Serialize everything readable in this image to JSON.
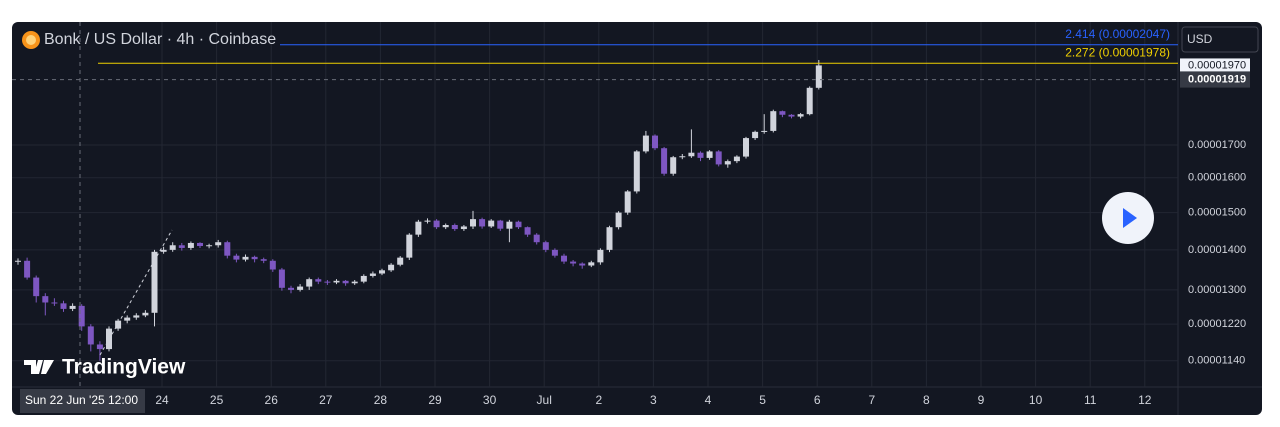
{
  "chart_data": {
    "type": "candlestick",
    "title": "Bonk / US Dollar · 4h · Coinbase",
    "currency": "USD",
    "logo": "TradingView",
    "log_scale": true,
    "grid": true,
    "up_color": "#d1d4dc",
    "down_color": "#7e57c2",
    "ylim": [
      1.086e-05,
      2.135e-05
    ],
    "yticks": [
      {
        "value": 1.7e-05,
        "label": "0.00001700"
      },
      {
        "value": 1.6e-05,
        "label": "0.00001600"
      },
      {
        "value": 1.5e-05,
        "label": "0.00001500"
      },
      {
        "value": 1.4e-05,
        "label": "0.00001400"
      },
      {
        "value": 1.3e-05,
        "label": "0.00001300"
      },
      {
        "value": 1.22e-05,
        "label": "0.00001220"
      },
      {
        "value": 1.14e-05,
        "label": "0.00001140"
      }
    ],
    "xticks": [
      "24",
      "25",
      "26",
      "27",
      "28",
      "29",
      "30",
      "Jul",
      "2",
      "3",
      "4",
      "5",
      "6",
      "7",
      "8",
      "9",
      "10",
      "11",
      "12"
    ],
    "crosshair": {
      "date": "Sun 22 Jun '25",
      "time": "12:00",
      "price": {
        "value": 1.919e-05,
        "label": "0.00001919"
      }
    },
    "last_price": {
      "value": 1.97e-05,
      "label": "0.00001970"
    },
    "levels": [
      {
        "value": 2.047e-05,
        "label": "2.414 (0.00002047)",
        "color": "#2962ff"
      },
      {
        "value": 1.978e-05,
        "label": "2.272 (0.00001978)",
        "color": "#f0d000"
      }
    ],
    "open": [
      1.37e-05,
      1.372e-05,
      1.33e-05,
      1.285e-05,
      1.27e-05,
      1.268e-05,
      1.255e-05,
      1.262e-05,
      1.215e-05,
      1.175e-05,
      1.165e-05,
      1.21e-05,
      1.228e-05,
      1.235e-05,
      1.24e-05,
      1.246e-05,
      1.395e-05,
      1.4e-05,
      1.412e-05,
      1.405e-05,
      1.418e-05,
      1.41e-05,
      1.412e-05,
      1.42e-05,
      1.385e-05,
      1.375e-05,
      1.382e-05,
      1.376e-05,
      1.372e-05,
      1.35e-05,
      1.305e-05,
      1.3e-05,
      1.308e-05,
      1.326e-05,
      1.32e-05,
      1.318e-05,
      1.322e-05,
      1.316e-05,
      1.32e-05,
      1.334e-05,
      1.34e-05,
      1.348e-05,
      1.362e-05,
      1.38e-05,
      1.44e-05,
      1.475e-05,
      1.478e-05,
      1.46e-05,
      1.466e-05,
      1.455e-05,
      1.462e-05,
      1.482e-05,
      1.462e-05,
      1.478e-05,
      1.456e-05,
      1.475e-05,
      1.46e-05,
      1.44e-05,
      1.42e-05,
      1.4e-05,
      1.385e-05,
      1.37e-05,
      1.365e-05,
      1.36e-05,
      1.368e-05,
      1.4e-05,
      1.46e-05,
      1.5e-05,
      1.56e-05,
      1.68e-05,
      1.73e-05,
      1.69e-05,
      1.612e-05,
      1.662e-05,
      1.665e-05,
      1.676e-05,
      1.66e-05,
      1.68e-05,
      1.64e-05,
      1.65e-05,
      1.664e-05,
      1.722e-05,
      1.742e-05,
      1.745e-05,
      1.81e-05,
      1.798e-05,
      1.792e-05,
      1.8e-05,
      1.89e-05
    ],
    "high": [
      1.378e-05,
      1.38e-05,
      1.335e-05,
      1.292e-05,
      1.28e-05,
      1.274e-05,
      1.268e-05,
      1.266e-05,
      1.22e-05,
      1.182e-05,
      1.215e-05,
      1.232e-05,
      1.24e-05,
      1.245e-05,
      1.252e-05,
      1.4e-05,
      1.408e-05,
      1.42e-05,
      1.418e-05,
      1.422e-05,
      1.42e-05,
      1.416e-05,
      1.426e-05,
      1.424e-05,
      1.39e-05,
      1.388e-05,
      1.385e-05,
      1.38e-05,
      1.376e-05,
      1.354e-05,
      1.31e-05,
      1.314e-05,
      1.33e-05,
      1.33e-05,
      1.324e-05,
      1.326e-05,
      1.324e-05,
      1.324e-05,
      1.338e-05,
      1.345e-05,
      1.352e-05,
      1.366e-05,
      1.384e-05,
      1.444e-05,
      1.48e-05,
      1.484e-05,
      1.482e-05,
      1.47e-05,
      1.47e-05,
      1.466e-05,
      1.505e-05,
      1.486e-05,
      1.482e-05,
      1.48e-05,
      1.48e-05,
      1.478e-05,
      1.462e-05,
      1.444e-05,
      1.424e-05,
      1.404e-05,
      1.39e-05,
      1.374e-05,
      1.368e-05,
      1.372e-05,
      1.404e-05,
      1.464e-05,
      1.504e-05,
      1.564e-05,
      1.684e-05,
      1.745e-05,
      1.734e-05,
      1.694e-05,
      1.666e-05,
      1.672e-05,
      1.75e-05,
      1.68e-05,
      1.684e-05,
      1.684e-05,
      1.655e-05,
      1.668e-05,
      1.726e-05,
      1.746e-05,
      1.8e-05,
      1.815e-05,
      1.812e-05,
      1.8e-05,
      1.804e-05,
      1.895e-05,
      1.99e-05
    ],
    "low": [
      1.362e-05,
      1.325e-05,
      1.27e-05,
      1.24e-05,
      1.262e-05,
      1.248e-05,
      1.25e-05,
      1.205e-05,
      1.16e-05,
      1.14e-05,
      1.16e-05,
      1.205e-05,
      1.222e-05,
      1.23e-05,
      1.236e-05,
      1.215e-05,
      1.39e-05,
      1.395e-05,
      1.398e-05,
      1.4e-05,
      1.405e-05,
      1.404e-05,
      1.406e-05,
      1.378e-05,
      1.368e-05,
      1.37e-05,
      1.368e-05,
      1.366e-05,
      1.344e-05,
      1.298e-05,
      1.292e-05,
      1.296e-05,
      1.3e-05,
      1.314e-05,
      1.312e-05,
      1.314e-05,
      1.31e-05,
      1.312e-05,
      1.316e-05,
      1.33e-05,
      1.336e-05,
      1.344e-05,
      1.358e-05,
      1.374e-05,
      1.434e-05,
      1.47e-05,
      1.455e-05,
      1.455e-05,
      1.45e-05,
      1.45e-05,
      1.455e-05,
      1.456e-05,
      1.458e-05,
      1.45e-05,
      1.42e-05,
      1.455e-05,
      1.434e-05,
      1.414e-05,
      1.394e-05,
      1.38e-05,
      1.364e-05,
      1.358e-05,
      1.352e-05,
      1.356e-05,
      1.362e-05,
      1.394e-05,
      1.454e-05,
      1.494e-05,
      1.554e-05,
      1.674e-05,
      1.684e-05,
      1.606e-05,
      1.606e-05,
      1.656e-05,
      1.66e-05,
      1.65e-05,
      1.654e-05,
      1.634e-05,
      1.63e-05,
      1.644e-05,
      1.658e-05,
      1.716e-05,
      1.736e-05,
      1.74e-05,
      1.79e-05,
      1.786e-05,
      1.786e-05,
      1.796e-05,
      1.884e-05
    ],
    "close": [
      1.372e-05,
      1.33e-05,
      1.285e-05,
      1.27e-05,
      1.268e-05,
      1.255e-05,
      1.262e-05,
      1.215e-05,
      1.175e-05,
      1.165e-05,
      1.21e-05,
      1.228e-05,
      1.235e-05,
      1.24e-05,
      1.246e-05,
      1.395e-05,
      1.4e-05,
      1.412e-05,
      1.405e-05,
      1.418e-05,
      1.41e-05,
      1.412e-05,
      1.42e-05,
      1.385e-05,
      1.375e-05,
      1.382e-05,
      1.376e-05,
      1.372e-05,
      1.35e-05,
      1.305e-05,
      1.3e-05,
      1.308e-05,
      1.326e-05,
      1.32e-05,
      1.318e-05,
      1.322e-05,
      1.316e-05,
      1.32e-05,
      1.334e-05,
      1.34e-05,
      1.348e-05,
      1.362e-05,
      1.38e-05,
      1.44e-05,
      1.475e-05,
      1.478e-05,
      1.46e-05,
      1.466e-05,
      1.455e-05,
      1.462e-05,
      1.482e-05,
      1.462e-05,
      1.478e-05,
      1.456e-05,
      1.475e-05,
      1.46e-05,
      1.44e-05,
      1.42e-05,
      1.4e-05,
      1.385e-05,
      1.37e-05,
      1.365e-05,
      1.36e-05,
      1.368e-05,
      1.4e-05,
      1.46e-05,
      1.5e-05,
      1.56e-05,
      1.68e-05,
      1.73e-05,
      1.69e-05,
      1.612e-05,
      1.662e-05,
      1.665e-05,
      1.676e-05,
      1.66e-05,
      1.68e-05,
      1.64e-05,
      1.65e-05,
      1.664e-05,
      1.722e-05,
      1.742e-05,
      1.745e-05,
      1.81e-05,
      1.798e-05,
      1.792e-05,
      1.8e-05,
      1.89e-05,
      1.97e-05
    ]
  }
}
